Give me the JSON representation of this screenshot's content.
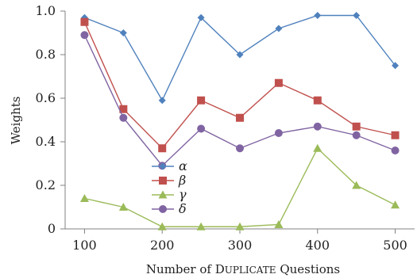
{
  "chart_data": {
    "type": "line",
    "xlabel": "Number of DUPLICATE Questions",
    "ylabel": "Weights",
    "x": [
      100,
      150,
      200,
      250,
      300,
      350,
      400,
      450,
      500
    ],
    "xlim": [
      75,
      525
    ],
    "ylim": [
      0,
      1.0
    ],
    "xticks": [
      100,
      200,
      300,
      400,
      500
    ],
    "yticks": [
      0,
      0.2,
      0.4,
      0.6,
      0.8,
      1.0
    ],
    "xtick_labels": [
      "100",
      "200",
      "300",
      "400",
      "500"
    ],
    "ytick_labels": [
      "0",
      "0.2",
      "0.4",
      "0.6",
      "0.8",
      "1.0"
    ],
    "grid": false,
    "legend_position": "center-left",
    "series": [
      {
        "name": "α",
        "color": "#4f81bd",
        "marker": "diamond",
        "values": [
          0.97,
          0.9,
          0.59,
          0.97,
          0.8,
          0.92,
          0.98,
          0.98,
          0.75
        ]
      },
      {
        "name": "β",
        "color": "#c0504d",
        "marker": "square",
        "values": [
          0.95,
          0.55,
          0.37,
          0.59,
          0.51,
          0.67,
          0.59,
          0.47,
          0.43
        ]
      },
      {
        "name": "γ",
        "color": "#9bbb59",
        "marker": "triangle",
        "values": [
          0.14,
          0.1,
          0.01,
          0.01,
          0.01,
          0.02,
          0.37,
          0.2,
          0.11
        ]
      },
      {
        "name": "δ",
        "color": "#8064a2",
        "marker": "circle",
        "values": [
          0.89,
          0.51,
          0.29,
          0.46,
          0.37,
          0.44,
          0.47,
          0.43,
          0.36
        ]
      }
    ]
  }
}
